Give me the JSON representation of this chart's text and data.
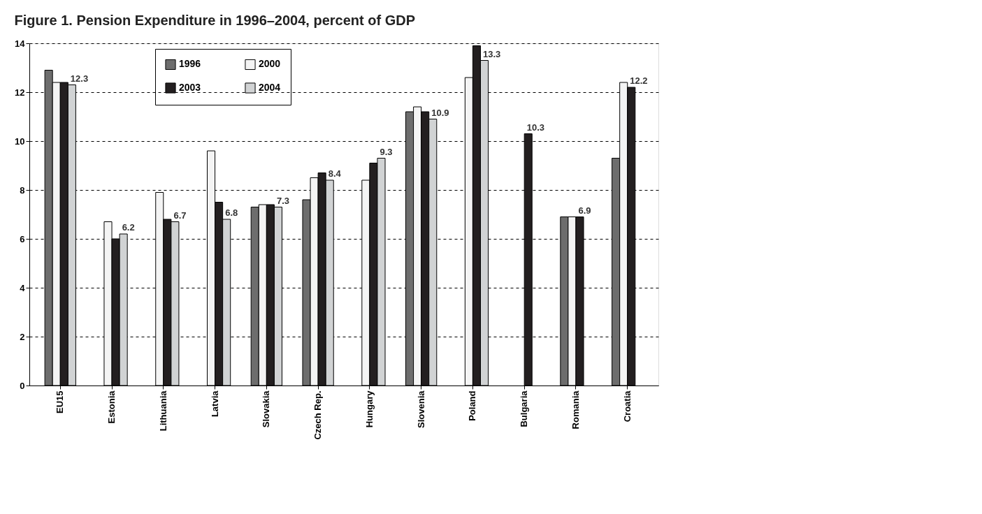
{
  "chart_data": {
    "type": "bar",
    "title": "Figure 1.  Pension Expenditure in 1996–2004, percent of GDP",
    "categories": [
      "EU15",
      "Estonia",
      "Lithuania",
      "Latvia",
      "Slovakia",
      "Czech Rep.",
      "Hungary",
      "Slovenia",
      "Poland",
      "Bulgaria",
      "Romania",
      "Croatia"
    ],
    "series": [
      {
        "name": "1996",
        "color": "#6d6d6d",
        "values": [
          12.9,
          null,
          null,
          null,
          7.3,
          7.6,
          null,
          11.2,
          null,
          null,
          6.9,
          9.3
        ],
        "value_labels": [
          null,
          null,
          null,
          null,
          null,
          null,
          null,
          null,
          null,
          null,
          null,
          null
        ]
      },
      {
        "name": "2000",
        "color": "#f4f4f4",
        "values": [
          12.4,
          6.7,
          7.9,
          9.6,
          7.4,
          8.5,
          8.4,
          11.4,
          12.6,
          null,
          6.9,
          12.4
        ],
        "value_labels": [
          null,
          null,
          null,
          null,
          null,
          null,
          null,
          null,
          null,
          null,
          null,
          null
        ]
      },
      {
        "name": "2003",
        "color": "#231f20",
        "values": [
          12.4,
          6.0,
          6.8,
          7.5,
          7.4,
          8.7,
          9.1,
          11.2,
          13.9,
          10.3,
          6.9,
          12.2
        ],
        "value_labels": [
          null,
          null,
          null,
          null,
          null,
          null,
          null,
          null,
          null,
          "10.3",
          "6.9",
          "12.2"
        ]
      },
      {
        "name": "2004",
        "color": "#d1d3d4",
        "values": [
          12.3,
          6.2,
          6.7,
          6.8,
          7.3,
          8.4,
          9.3,
          10.9,
          13.3,
          null,
          null,
          null
        ],
        "value_labels": [
          "12.3",
          "6.2",
          "6.7",
          "6.8",
          "7.3",
          "8.4",
          "9.3",
          "10.9",
          "13.3",
          null,
          null,
          null
        ]
      }
    ],
    "ylim": [
      0,
      14
    ],
    "yticks": [
      0,
      2,
      4,
      6,
      8,
      10,
      12,
      14
    ],
    "grid": "y",
    "legend": "top left"
  }
}
